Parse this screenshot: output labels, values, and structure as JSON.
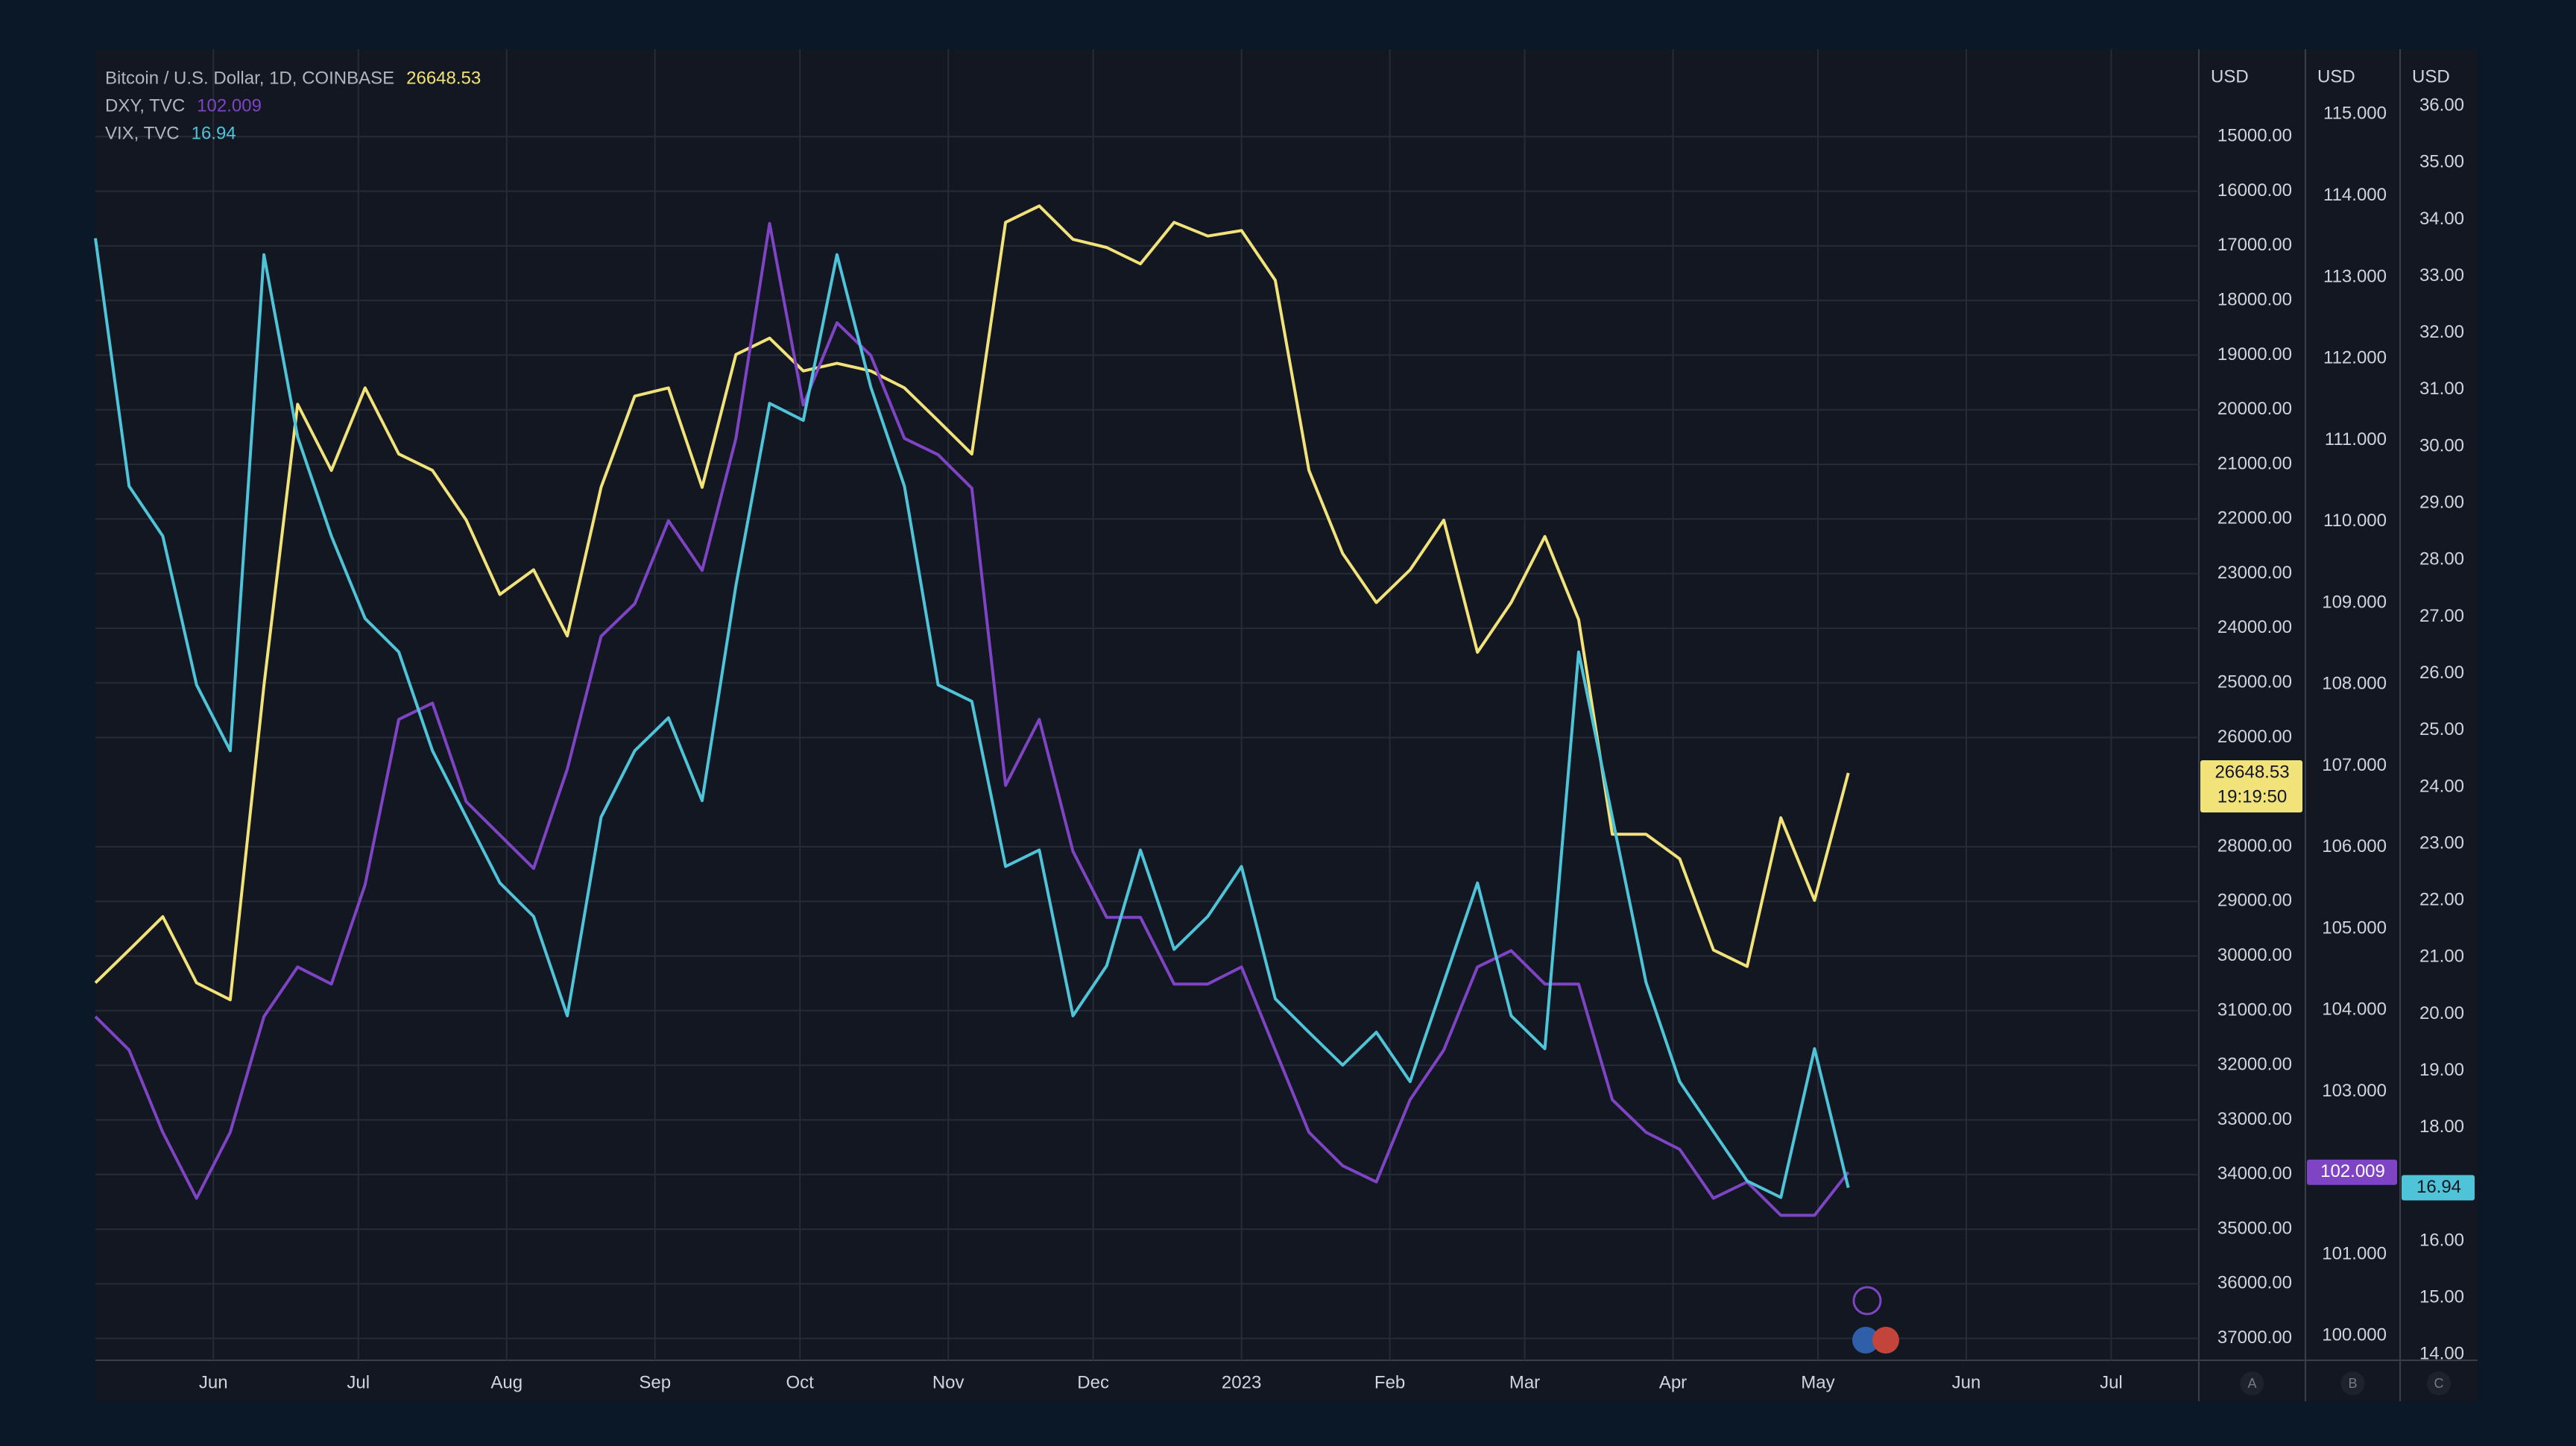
{
  "chart_data": {
    "type": "line",
    "x": [
      0,
      1,
      2,
      3,
      4,
      5,
      6,
      7,
      8,
      9,
      10,
      11,
      12,
      13,
      14,
      15,
      16,
      17,
      18,
      19,
      20,
      21,
      22,
      23,
      24,
      25,
      26,
      27,
      28,
      29,
      30,
      31,
      32,
      33,
      34,
      35,
      36,
      37,
      38,
      39,
      40,
      41,
      42,
      43,
      44,
      45,
      46,
      47,
      48,
      49,
      50,
      51,
      52
    ],
    "xlim": [
      0,
      62.4
    ],
    "xticks": [
      {
        "value": 3.5,
        "label": "Jun"
      },
      {
        "value": 7.8,
        "label": "Jul"
      },
      {
        "value": 12.2,
        "label": "Aug"
      },
      {
        "value": 16.6,
        "label": "Sep"
      },
      {
        "value": 20.9,
        "label": "Oct"
      },
      {
        "value": 25.3,
        "label": "Nov"
      },
      {
        "value": 29.6,
        "label": "Dec"
      },
      {
        "value": 34.0,
        "label": "2023"
      },
      {
        "value": 38.4,
        "label": "Feb"
      },
      {
        "value": 42.4,
        "label": "Mar"
      },
      {
        "value": 46.8,
        "label": "Apr"
      },
      {
        "value": 51.1,
        "label": "May"
      },
      {
        "value": 55.5,
        "label": "Jun"
      },
      {
        "value": 59.8,
        "label": "Jul"
      }
    ],
    "ylim": [
      37400,
      13400
    ],
    "yticks": [
      {
        "value": 15000,
        "label": "15000.00"
      },
      {
        "value": 16000,
        "label": "16000.00"
      },
      {
        "value": 17000,
        "label": "17000.00"
      },
      {
        "value": 18000,
        "label": "18000.00"
      },
      {
        "value": 19000,
        "label": "19000.00"
      },
      {
        "value": 20000,
        "label": "20000.00"
      },
      {
        "value": 21000,
        "label": "21000.00"
      },
      {
        "value": 22000,
        "label": "22000.00"
      },
      {
        "value": 23000,
        "label": "23000.00"
      },
      {
        "value": 24000,
        "label": "24000.00"
      },
      {
        "value": 25000,
        "label": "25000.00"
      },
      {
        "value": 26000,
        "label": "26000.00"
      },
      {
        "value": 28000,
        "label": "28000.00"
      },
      {
        "value": 29000,
        "label": "29000.00"
      },
      {
        "value": 30000,
        "label": "30000.00"
      },
      {
        "value": 31000,
        "label": "31000.00"
      },
      {
        "value": 32000,
        "label": "32000.00"
      },
      {
        "value": 33000,
        "label": "33000.00"
      },
      {
        "value": 34000,
        "label": "34000.00"
      },
      {
        "value": 35000,
        "label": "35000.00"
      },
      {
        "value": 36000,
        "label": "36000.00"
      },
      {
        "value": 37000,
        "label": "37000.00"
      }
    ],
    "y2lim": [
      99.7,
      115.8
    ],
    "y2ticks": [
      {
        "value": 100,
        "label": "100.000"
      },
      {
        "value": 101,
        "label": "101.000"
      },
      {
        "value": 102,
        "label": "102.000"
      },
      {
        "value": 103,
        "label": "103.000"
      },
      {
        "value": 104,
        "label": "104.000"
      },
      {
        "value": 105,
        "label": "105.000"
      },
      {
        "value": 106,
        "label": "106.000"
      },
      {
        "value": 107,
        "label": "107.000"
      },
      {
        "value": 108,
        "label": "108.000"
      },
      {
        "value": 109,
        "label": "109.000"
      },
      {
        "value": 110,
        "label": "110.000"
      },
      {
        "value": 111,
        "label": "111.000"
      },
      {
        "value": 112,
        "label": "112.000"
      },
      {
        "value": 113,
        "label": "113.000"
      },
      {
        "value": 114,
        "label": "114.000"
      },
      {
        "value": 115,
        "label": "115.000"
      }
    ],
    "y3lim": [
      13.9,
      37.0
    ],
    "y3ticks": [
      {
        "value": 14,
        "label": "14.00"
      },
      {
        "value": 15,
        "label": "15.00"
      },
      {
        "value": 16,
        "label": "16.00"
      },
      {
        "value": 18,
        "label": "18.00"
      },
      {
        "value": 19,
        "label": "19.00"
      },
      {
        "value": 20,
        "label": "20.00"
      },
      {
        "value": 21,
        "label": "21.00"
      },
      {
        "value": 22,
        "label": "22.00"
      },
      {
        "value": 23,
        "label": "23.00"
      },
      {
        "value": 24,
        "label": "24.00"
      },
      {
        "value": 25,
        "label": "25.00"
      },
      {
        "value": 26,
        "label": "26.00"
      },
      {
        "value": 27,
        "label": "27.00"
      },
      {
        "value": 28,
        "label": "28.00"
      },
      {
        "value": 29,
        "label": "29.00"
      },
      {
        "value": 30,
        "label": "30.00"
      },
      {
        "value": 31,
        "label": "31.00"
      },
      {
        "value": 32,
        "label": "32.00"
      },
      {
        "value": 33,
        "label": "33.00"
      },
      {
        "value": 34,
        "label": "34.00"
      },
      {
        "value": 35,
        "label": "35.00"
      },
      {
        "value": 36,
        "label": "36.00"
      }
    ],
    "axis_titles": [
      "USD",
      "USD",
      "USD"
    ],
    "axis_footers": [
      "A",
      "B",
      "C"
    ],
    "grid": true,
    "countdown": "19:19:50",
    "series": [
      {
        "name": "Bitcoin / U.S. Dollar, 1D, COINBASE",
        "color": "#f2e27a",
        "axis": "y",
        "values": [
          30490,
          29890,
          29280,
          30490,
          30800,
          25050,
          19900,
          21110,
          19600,
          20810,
          21110,
          22020,
          23380,
          22930,
          24140,
          21420,
          19750,
          19600,
          21420,
          18990,
          18690,
          19290,
          19150,
          19290,
          19600,
          20200,
          20810,
          16570,
          16270,
          16880,
          17030,
          17330,
          16570,
          16820,
          16720,
          17630,
          21110,
          22630,
          23530,
          22930,
          22020,
          24440,
          23530,
          22320,
          23840,
          27770,
          27770,
          28220,
          29890,
          30190,
          27470,
          28980,
          26648.53
        ]
      },
      {
        "name": "DXY, TVC",
        "color": "#7e44c4",
        "axis": "y2",
        "values": [
          103.92,
          103.51,
          102.5,
          101.69,
          102.5,
          103.92,
          104.53,
          104.32,
          105.54,
          107.57,
          107.77,
          106.56,
          106.15,
          105.74,
          106.96,
          108.59,
          108.99,
          110.01,
          109.4,
          111.02,
          113.66,
          111.43,
          112.44,
          112.04,
          111.02,
          110.82,
          110.41,
          106.76,
          107.57,
          105.95,
          105.14,
          105.14,
          104.32,
          104.32,
          104.53,
          103.51,
          102.5,
          102.09,
          101.89,
          102.9,
          103.51,
          104.53,
          104.73,
          104.32,
          104.32,
          102.9,
          102.5,
          102.29,
          101.69,
          101.89,
          101.48,
          101.48,
          102.009
        ]
      },
      {
        "name": "VIX, TVC",
        "color": "#4fc4d8",
        "axis": "y3",
        "values": [
          33.67,
          29.3,
          28.42,
          25.8,
          24.64,
          33.38,
          30.17,
          28.42,
          26.97,
          26.38,
          24.64,
          23.47,
          22.31,
          21.72,
          19.97,
          23.47,
          24.64,
          25.22,
          23.76,
          27.55,
          30.76,
          30.46,
          33.38,
          31.05,
          29.3,
          25.8,
          25.51,
          22.6,
          22.89,
          19.97,
          20.85,
          22.89,
          21.14,
          21.72,
          22.6,
          20.27,
          19.68,
          19.1,
          19.68,
          18.81,
          20.56,
          22.31,
          19.97,
          19.39,
          26.38,
          23.47,
          20.56,
          18.81,
          17.93,
          17.06,
          16.77,
          19.39,
          16.94
        ]
      }
    ]
  }
}
